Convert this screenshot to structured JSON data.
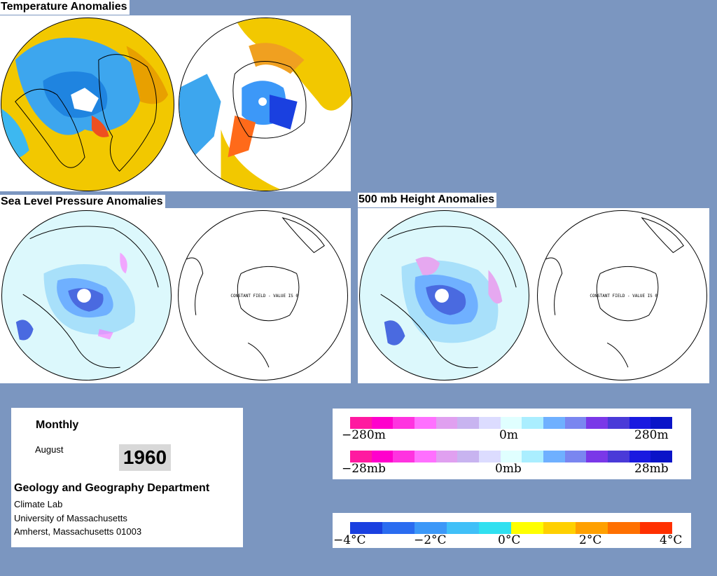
{
  "titles": {
    "temperature": "Temperature Anomalies",
    "slp": "Sea Level Pressure Anomalies",
    "height500": "500 mb Height Anomalies"
  },
  "maps": {
    "constant_field_label": "CONSTANT FIELD - VALUE IS 0"
  },
  "info": {
    "period": "Monthly",
    "month": "August",
    "year": "1960",
    "department": "Geology and Geography Department",
    "lab": "Climate Lab",
    "university": "University of Massachusetts",
    "address": "Amherst, Massachusetts 01003"
  },
  "legend": {
    "height_scale": {
      "min": "−280m",
      "mid": "0m",
      "max": "280m"
    },
    "pressure_scale": {
      "min": "−28mb",
      "mid": "0mb",
      "max": "28mb"
    },
    "temperature_scale": {
      "labels": [
        "−4°C",
        "−2°C",
        "0°C",
        "2°C",
        "4°C"
      ]
    }
  },
  "colors": {
    "background": "#7b96c0",
    "anomaly_scale": [
      "#ff1aa0",
      "#ff00cc",
      "#ff33e0",
      "#ff70ff",
      "#e0a0f0",
      "#c8b4f0",
      "#dcdcff",
      "#e0ffff",
      "#aaeeff",
      "#6fb0ff",
      "#7a86f0",
      "#7a38e8",
      "#4a3ad8",
      "#1a1ae0",
      "#0a14c8"
    ],
    "temperature_scale": [
      "#1a40e0",
      "#2a6cf0",
      "#3c98f8",
      "#40c0f8",
      "#30e0f0",
      "#ffff00",
      "#ffd000",
      "#ffa000",
      "#ff7000",
      "#ff3000"
    ]
  }
}
